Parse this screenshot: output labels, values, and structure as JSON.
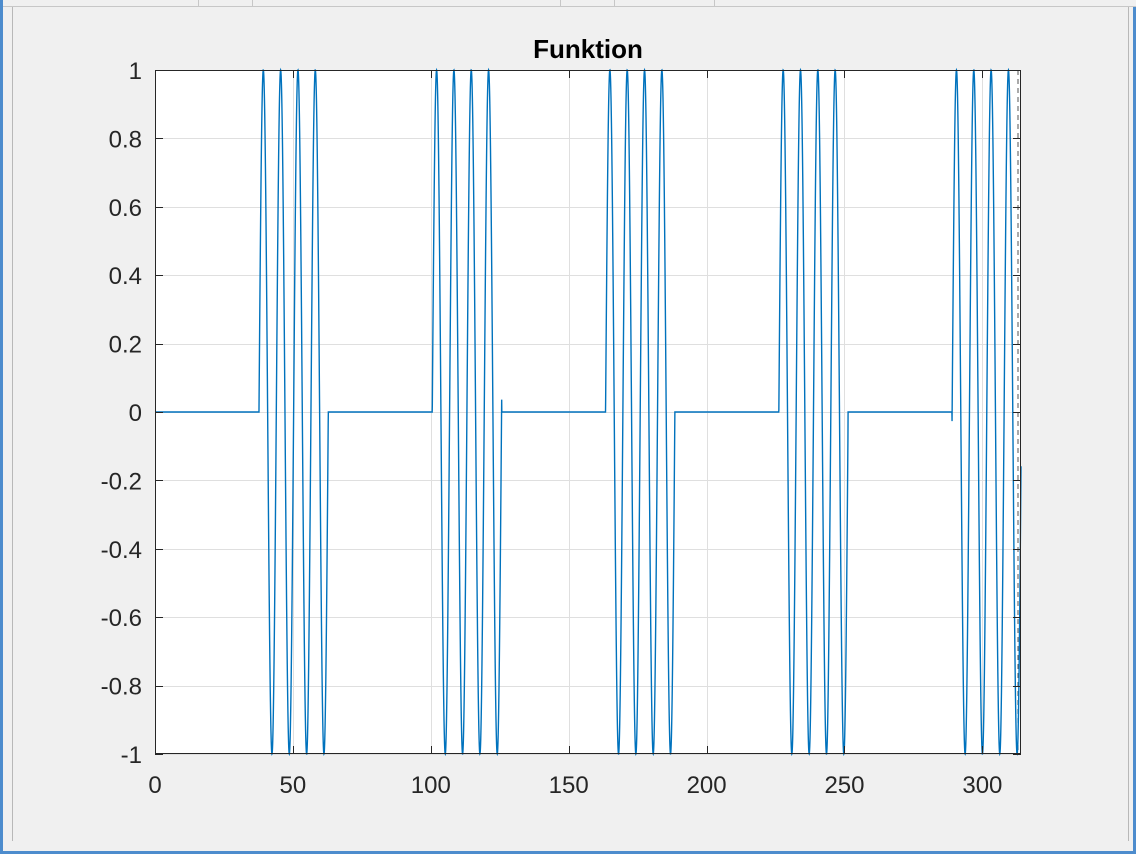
{
  "chart_data": {
    "type": "line",
    "title": "Funktion",
    "xlabel": "",
    "ylabel": "",
    "xlim": [
      0,
      314
    ],
    "ylim": [
      -1,
      1
    ],
    "xticks": [
      0,
      50,
      100,
      150,
      200,
      250,
      300
    ],
    "xtick_labels": [
      "0",
      "50",
      "100",
      "150",
      "200",
      "250",
      "300"
    ],
    "yticks": [
      1,
      0.8,
      0.6,
      0.4,
      0.2,
      0,
      -0.2,
      -0.4,
      -0.6,
      -0.8,
      -1
    ],
    "ytick_labels": [
      "1",
      "0.8",
      "0.6",
      "0.4",
      "0.2",
      "0",
      "-0.2",
      "-0.4",
      "-0.6",
      "-0.8",
      "-1"
    ],
    "grid": true,
    "series": [
      {
        "color": "#0072bd",
        "x": [
          0,
          37.7,
          37.7,
          44.0,
          44.0,
          50.3,
          50.3,
          56.5,
          56.5,
          62.8,
          62.8,
          100.5,
          100.5,
          106.8,
          106.8,
          113.1,
          113.1,
          119.4,
          119.4,
          125.7,
          125.7,
          163.4,
          163.4,
          169.6,
          169.6,
          175.9,
          175.9,
          182.2,
          182.2,
          188.5,
          188.5,
          226.2,
          226.2,
          232.5,
          232.5,
          238.8,
          238.8,
          245.0,
          245.0,
          251.3,
          251.3,
          289.0,
          289.0,
          295.3,
          295.3,
          301.6,
          301.6,
          307.9,
          307.9,
          314.2
        ],
        "y": [
          0,
          0,
          "sin",
          0,
          "sin",
          0,
          "sin",
          0,
          "sin",
          0,
          0,
          0,
          "sin",
          0,
          "sin",
          0,
          "sin",
          0,
          "sin",
          0,
          0,
          0,
          "sin",
          0,
          "sin",
          0,
          "sin",
          0,
          "sin",
          0,
          0,
          0,
          "sin",
          0,
          "sin",
          0,
          "sin",
          0,
          "sin",
          0,
          0,
          0,
          "sin",
          0,
          "sin",
          0,
          "sin",
          0,
          "sin",
          0
        ],
        "bursts": [
          {
            "start": 37.7,
            "end": 62.8
          },
          {
            "start": 100.5,
            "end": 125.7
          },
          {
            "start": 163.4,
            "end": 188.5
          },
          {
            "start": 226.2,
            "end": 251.3
          },
          {
            "start": 289.0,
            "end": 314.2
          }
        ],
        "oscillation": "y = sin(x) within bursts, 0 elsewhere"
      }
    ],
    "end_marker_x": 314
  }
}
